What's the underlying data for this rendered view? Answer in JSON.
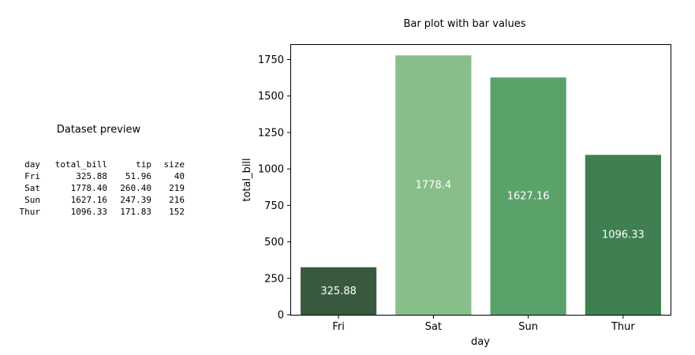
{
  "left_panel": {
    "title": "Dataset preview",
    "columns": [
      "day",
      "total_bill",
      "tip",
      "size"
    ],
    "rows": [
      [
        "Fri",
        "325.88",
        "51.96",
        "40"
      ],
      [
        "Sat",
        "1778.40",
        "260.40",
        "219"
      ],
      [
        "Sun",
        "1627.16",
        "247.39",
        "216"
      ],
      [
        "Thur",
        "1096.33",
        "171.83",
        "152"
      ]
    ]
  },
  "chart_data": {
    "type": "bar",
    "title": "Bar plot with bar values",
    "xlabel": "day",
    "ylabel": "total_bill",
    "categories": [
      "Fri",
      "Sat",
      "Sun",
      "Thur"
    ],
    "values": [
      325.88,
      1778.4,
      1627.16,
      1096.33
    ],
    "value_labels": [
      "325.88",
      "1778.4",
      "1627.16",
      "1096.33"
    ],
    "colors": [
      "#3a5a40",
      "#88be8a",
      "#5aa26a",
      "#3f7f52"
    ],
    "ylim": [
      0,
      1850
    ],
    "yticks": [
      0,
      250,
      500,
      750,
      1000,
      1250,
      1500,
      1750
    ],
    "grid": false
  }
}
